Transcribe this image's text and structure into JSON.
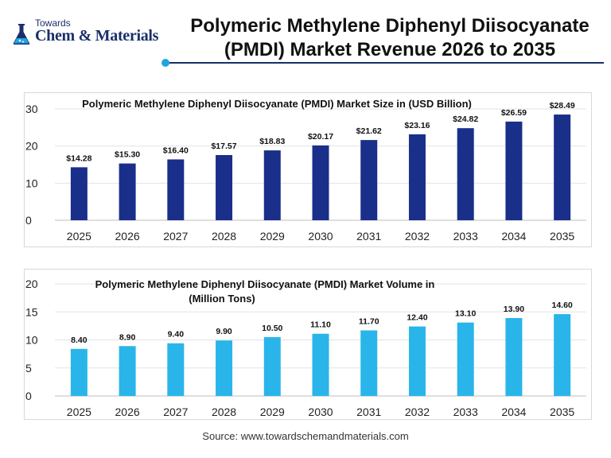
{
  "logo": {
    "line1": "Towards",
    "line2": "Chem & Materials"
  },
  "header": {
    "title_line1": "Polymeric Methylene Diphenyl Diisocyanate",
    "title_line2": "(PMDI) Market Revenue 2026 to 2035"
  },
  "source": "Source: www.towardschemandmaterials.com",
  "colors": {
    "revenue_bar": "#1a2f8a",
    "volume_bar": "#29b5ea",
    "title_accent": "#1fa5e0"
  },
  "chart_data": [
    {
      "type": "bar",
      "title_lines": [
        "Polymeric Methylene Diphenyl Diisocyanate (PMDI) Market Size in (USD Billion)"
      ],
      "categories": [
        "2025",
        "2026",
        "2027",
        "2028",
        "2029",
        "2030",
        "2031",
        "2032",
        "2033",
        "2034",
        "2035"
      ],
      "values": [
        14.28,
        15.3,
        16.4,
        17.57,
        18.83,
        20.17,
        21.62,
        23.16,
        24.82,
        26.59,
        28.49
      ],
      "labels": [
        "$14.28",
        "$15.30",
        "$16.40",
        "$17.57",
        "$18.83",
        "$20.17",
        "$21.62",
        "$23.16",
        "$24.82",
        "$26.59",
        "$28.49"
      ],
      "yticks": [
        "0",
        "10",
        "20",
        "30"
      ],
      "ylim": [
        0,
        30
      ],
      "grid": true,
      "color": "#1a2f8a"
    },
    {
      "type": "bar",
      "title_lines": [
        "Polymeric Methylene Diphenyl Diisocyanate (PMDI) Market Volume in",
        "(Million Tons)"
      ],
      "categories": [
        "2025",
        "2026",
        "2027",
        "2028",
        "2029",
        "2030",
        "2031",
        "2032",
        "2033",
        "2034",
        "2035"
      ],
      "values": [
        8.4,
        8.9,
        9.4,
        9.9,
        10.5,
        11.1,
        11.7,
        12.4,
        13.1,
        13.9,
        14.6
      ],
      "labels": [
        "8.40",
        "8.90",
        "9.40",
        "9.90",
        "10.50",
        "11.10",
        "11.70",
        "12.40",
        "13.10",
        "13.90",
        "14.60"
      ],
      "yticks": [
        "0",
        "5",
        "10",
        "15",
        "20"
      ],
      "ylim": [
        0,
        20
      ],
      "grid": true,
      "color": "#29b5ea"
    }
  ]
}
